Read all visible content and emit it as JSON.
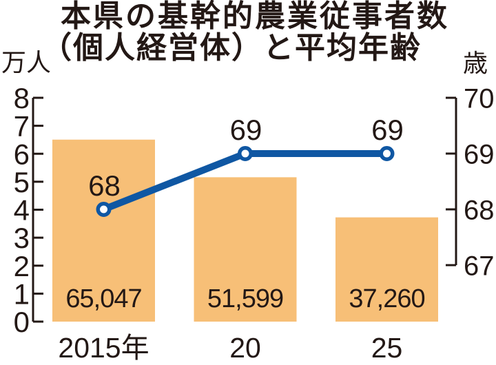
{
  "title": {
    "line1": "本県の基幹的農業従事者数",
    "line2": "（個人経営体）と平均年齢"
  },
  "chart_data": {
    "type": "bar",
    "categories": [
      "2015年",
      "20",
      "25"
    ],
    "series": [
      {
        "name": "基幹的農業従事者数（個人経営体）",
        "type": "bar",
        "axis": "left",
        "values": [
          65047,
          51599,
          37260
        ],
        "value_labels": [
          "65,047",
          "51,599",
          "37,260"
        ],
        "color": "#f7bf77"
      },
      {
        "name": "平均年齢",
        "type": "line",
        "axis": "right",
        "values": [
          68,
          69,
          69
        ],
        "value_labels": [
          "68",
          "69",
          "69"
        ],
        "color": "#0f57a3"
      }
    ],
    "left_axis": {
      "unit": "万人",
      "min": 0,
      "max": 8,
      "ticks": [
        "8",
        "7",
        "6",
        "5",
        "4",
        "3",
        "2",
        "1",
        "0"
      ]
    },
    "right_axis": {
      "unit": "歳",
      "min": 67,
      "max": 70,
      "ticks": [
        "70",
        "69",
        "68",
        "67"
      ]
    },
    "grid": false,
    "legend": false,
    "text_color": "#231815"
  }
}
